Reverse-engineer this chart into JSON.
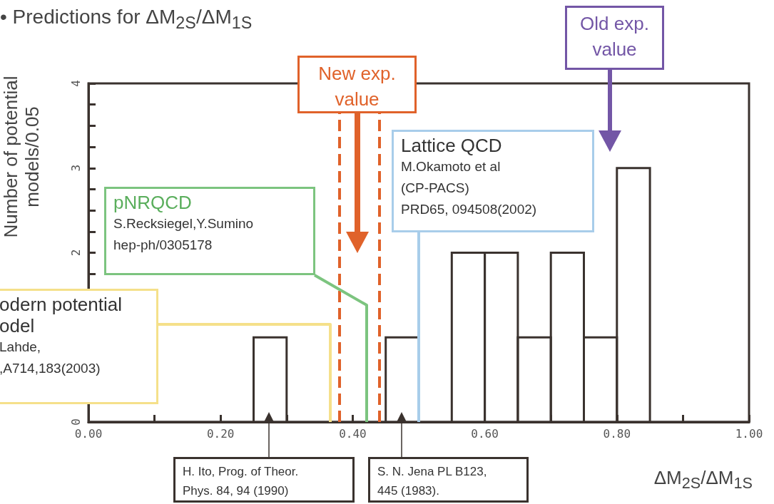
{
  "chart_data": {
    "type": "histogram",
    "title": "• Predictions for ΔM$_{2S}$/ΔM$_{1S}$",
    "xlabel": "ΔM$_{2S}$/ΔM$_{1S}$",
    "ylabel": "Number of potential\nmodels/0.05",
    "bins": [
      0,
      0.05,
      0.1,
      0.15,
      0.2,
      0.25,
      0.3,
      0.35,
      0.4,
      0.45,
      0.5,
      0.55,
      0.6,
      0.65,
      0.7,
      0.75,
      0.8,
      0.85,
      0.9,
      0.95,
      1.0
    ],
    "values": [
      0,
      0,
      0,
      0,
      0,
      1,
      0,
      0,
      0,
      1,
      0,
      2,
      2,
      1,
      2,
      1,
      3,
      0,
      0,
      0
    ],
    "color": "#3a322e",
    "xlim": [
      0,
      1
    ],
    "ylim": [
      0,
      4
    ],
    "xticks": [
      {
        "value": 0,
        "label": "0.00"
      },
      {
        "value": 0.1,
        "label": null
      },
      {
        "value": 0.2,
        "label": "0.20"
      },
      {
        "value": 0.3,
        "label": null
      },
      {
        "value": 0.4,
        "label": "0.40"
      },
      {
        "value": 0.5,
        "label": null
      },
      {
        "value": 0.6,
        "label": "0.60"
      },
      {
        "value": 0.7,
        "label": null
      },
      {
        "value": 0.8,
        "label": "0.80"
      },
      {
        "value": 0.9,
        "label": null
      },
      {
        "value": 1,
        "label": "1.00"
      }
    ],
    "yticks": [
      0,
      {
        "value": 0.25,
        "label": null
      },
      {
        "value": 0.5,
        "label": null
      },
      {
        "value": 0.75,
        "label": null
      },
      {
        "value": 1,
        "label": null
      },
      {
        "value": 1.25,
        "label": null
      },
      {
        "value": 1.5,
        "label": null
      },
      {
        "value": 1.75,
        "label": null
      },
      2,
      {
        "value": 2.25,
        "label": null
      },
      {
        "value": 2.5,
        "label": null
      },
      {
        "value": 2.75,
        "label": null
      },
      3,
      {
        "value": 3.25,
        "label": null
      },
      {
        "value": 3.5,
        "label": null
      },
      {
        "value": 3.75,
        "label": null
      },
      4
    ],
    "ref_lines": [
      {
        "axis": "x",
        "value": 0.378,
        "label": null,
        "color": "#e0622a",
        "line_style": "dashed"
      },
      {
        "axis": "x",
        "value": 0.44,
        "label": null,
        "color": "#e0622a",
        "line_style": "dashed"
      }
    ],
    "annotations": [
      "odern potential\nodel\nLahde,\n,A714,183(2003)",
      "pNRQCD\nS.Recksiegel,Y.Sumino\nhep-ph/0305178",
      {
        "text": "Lattice QCD\nM.Okamoto et al\n(CP-PACS)\nPRD65, 094508(2002)",
        "x": 0.5,
        "y": 0
      },
      "New exp.\nvalue",
      "Old exp.\nvalue",
      "H. Ito, Prog. of Theor.\nPhys. 84, 94 (1990)",
      "S. N. Jena PL B123,\n445 (1983)."
    ]
  }
}
